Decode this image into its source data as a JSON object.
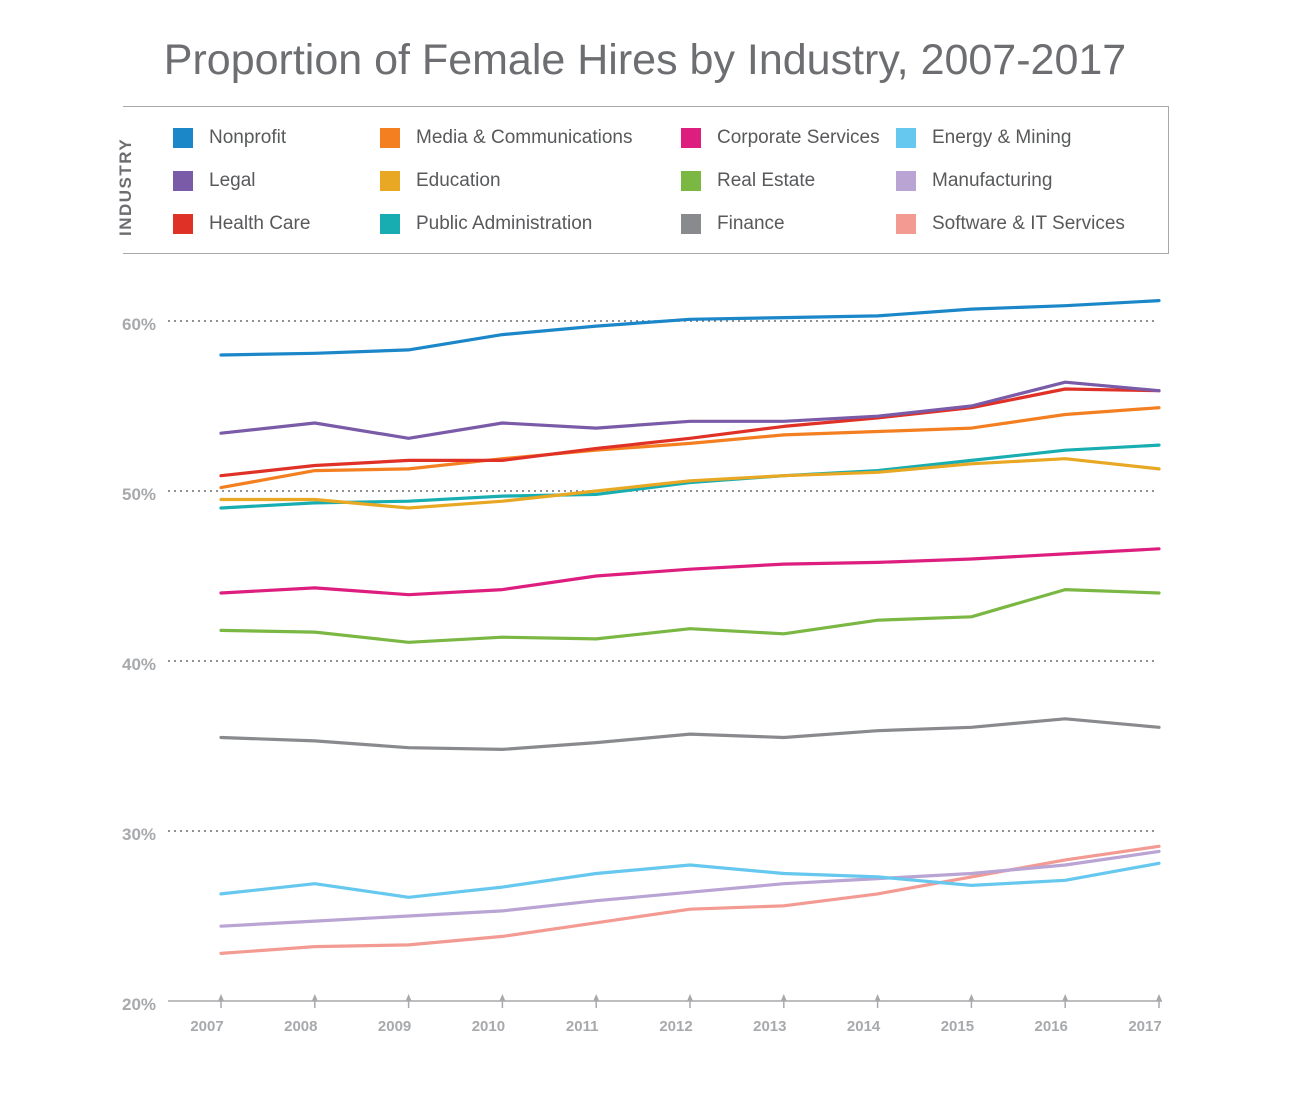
{
  "chart_data": {
    "type": "line",
    "title": "Proportion of Female Hires by Industry, 2007-2017",
    "legend_title": "INDUSTRY",
    "legend_placement": "top",
    "xlabel": "",
    "ylabel": "",
    "ylim": [
      20,
      61
    ],
    "yticks": [
      {
        "value": 20,
        "label": "20%"
      },
      {
        "value": 30,
        "label": "30%"
      },
      {
        "value": 40,
        "label": "40%"
      },
      {
        "value": 50,
        "label": "50%"
      },
      {
        "value": 60,
        "label": "60%"
      }
    ],
    "gridlines_at": [
      30,
      40,
      50,
      60
    ],
    "categories": [
      "2007",
      "2008",
      "2009",
      "2010",
      "2011",
      "2012",
      "2013",
      "2014",
      "2015",
      "2016",
      "2017"
    ],
    "series": [
      {
        "name": "Nonprofit",
        "color": "#1b87c9",
        "values": [
          58.0,
          58.1,
          58.3,
          59.2,
          59.7,
          60.1,
          60.2,
          60.3,
          60.7,
          60.9,
          61.2
        ]
      },
      {
        "name": "Legal",
        "color": "#7a5ba8",
        "values": [
          53.4,
          54.0,
          53.1,
          54.0,
          53.7,
          54.1,
          54.1,
          54.4,
          55.0,
          56.4,
          55.9
        ]
      },
      {
        "name": "Health Care",
        "color": "#df3126",
        "values": [
          50.9,
          51.5,
          51.8,
          51.8,
          52.5,
          53.1,
          53.8,
          54.3,
          54.9,
          56.0,
          55.9
        ]
      },
      {
        "name": "Media & Communications",
        "color": "#f37f21",
        "values": [
          50.2,
          51.2,
          51.3,
          51.9,
          52.4,
          52.8,
          53.3,
          53.5,
          53.7,
          54.5,
          54.9
        ]
      },
      {
        "name": "Education",
        "color": "#e8a823",
        "values": [
          49.5,
          49.5,
          49.0,
          49.4,
          50.0,
          50.6,
          50.9,
          51.1,
          51.6,
          51.9,
          51.3
        ]
      },
      {
        "name": "Public Administration",
        "color": "#18aeb1",
        "values": [
          49.0,
          49.3,
          49.4,
          49.7,
          49.8,
          50.5,
          50.9,
          51.2,
          51.8,
          52.4,
          52.7
        ]
      },
      {
        "name": "Corporate Services",
        "color": "#de1e7e",
        "values": [
          44.0,
          44.3,
          43.9,
          44.2,
          45.0,
          45.4,
          45.7,
          45.8,
          46.0,
          46.3,
          46.6
        ]
      },
      {
        "name": "Real Estate",
        "color": "#7ab743",
        "values": [
          41.8,
          41.7,
          41.1,
          41.4,
          41.3,
          41.9,
          41.6,
          42.4,
          42.6,
          44.2,
          44.0
        ]
      },
      {
        "name": "Finance",
        "color": "#898a8d",
        "values": [
          35.5,
          35.3,
          34.9,
          34.8,
          35.2,
          35.7,
          35.5,
          35.9,
          36.1,
          36.6,
          36.1
        ]
      },
      {
        "name": "Energy & Mining",
        "color": "#66c8ee",
        "values": [
          26.3,
          26.9,
          26.1,
          26.7,
          27.5,
          28.0,
          27.5,
          27.3,
          26.8,
          27.1,
          28.1
        ]
      },
      {
        "name": "Manufacturing",
        "color": "#b9a4d4",
        "values": [
          24.4,
          24.7,
          25.0,
          25.3,
          25.9,
          26.4,
          26.9,
          27.2,
          27.5,
          28.0,
          28.8
        ]
      },
      {
        "name": "Software & IT Services",
        "color": "#f39a92",
        "values": [
          22.8,
          23.2,
          23.3,
          23.8,
          24.6,
          25.4,
          25.6,
          26.3,
          27.3,
          28.3,
          29.1
        ]
      }
    ],
    "legend_order": [
      "Nonprofit",
      "Media & Communications",
      "Corporate Services",
      "Energy & Mining",
      "Legal",
      "Education",
      "Real Estate",
      "Manufacturing",
      "Health Care",
      "Public Administration",
      "Finance",
      "Software & IT Services"
    ]
  }
}
